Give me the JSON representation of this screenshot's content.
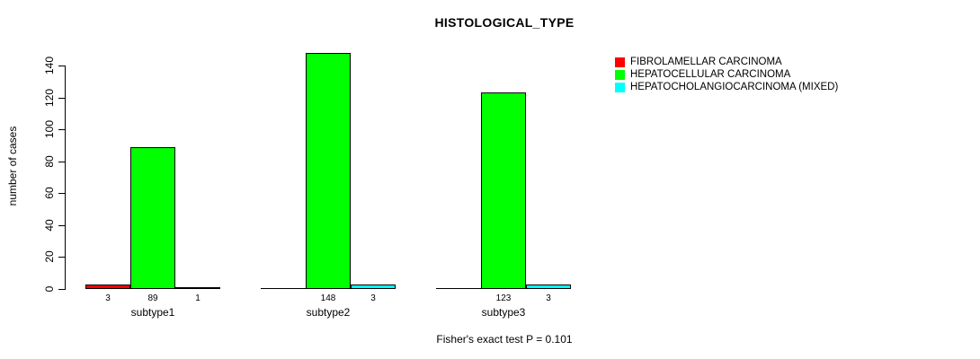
{
  "chart_data": {
    "type": "bar",
    "title": "HISTOLOGICAL_TYPE",
    "ylabel": "number of cases",
    "footnote": "Fisher's exact test P = 0.101",
    "categories": [
      "subtype1",
      "subtype2",
      "subtype3"
    ],
    "series": [
      {
        "name": "FIBROLAMELLAR CARCINOMA",
        "color": "#ff0000",
        "values": [
          3,
          0,
          0
        ],
        "bar_labels": [
          "3",
          "",
          ""
        ]
      },
      {
        "name": "HEPATOCELLULAR CARCINOMA",
        "color": "#00ff00",
        "values": [
          89,
          148,
          123
        ],
        "bar_labels": [
          "89",
          "148",
          "123"
        ]
      },
      {
        "name": "HEPATOCHOLANGIOCARCINOMA (MIXED)",
        "color": "#00ffff",
        "values": [
          1,
          3,
          3
        ],
        "bar_labels": [
          "1",
          "3",
          "3"
        ]
      }
    ],
    "ylim": [
      0,
      140
    ],
    "yticks": [
      0,
      20,
      40,
      60,
      80,
      100,
      120,
      140
    ],
    "legend_position": "right",
    "grid": false
  }
}
